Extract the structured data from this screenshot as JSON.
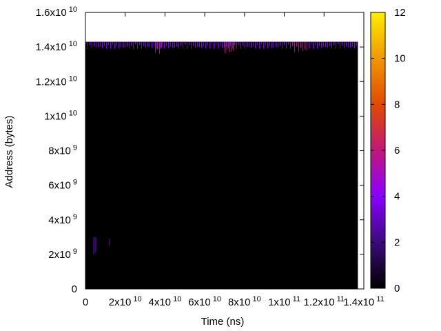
{
  "chart_data": {
    "type": "heatmap",
    "title": "",
    "xlabel": "Time (ns)",
    "ylabel": "Address (bytes)",
    "xlim": [
      0,
      140000000000
    ],
    "ylim": [
      0,
      16000000000
    ],
    "x_ticks": [
      {
        "base": "0",
        "exp": ""
      },
      {
        "base": "2x10",
        "exp": "10"
      },
      {
        "base": "4x10",
        "exp": "10"
      },
      {
        "base": "6x10",
        "exp": "10"
      },
      {
        "base": "8x10",
        "exp": "10"
      },
      {
        "base": "1x10",
        "exp": "11"
      },
      {
        "base": "1.2x10",
        "exp": "11"
      },
      {
        "base": "1.4x10",
        "exp": "11"
      }
    ],
    "y_ticks": [
      {
        "base": "0",
        "exp": ""
      },
      {
        "base": "2x10",
        "exp": "9"
      },
      {
        "base": "4x10",
        "exp": "9"
      },
      {
        "base": "6x10",
        "exp": "9"
      },
      {
        "base": "8x10",
        "exp": "9"
      },
      {
        "base": "1x10",
        "exp": "10"
      },
      {
        "base": "1.2x10",
        "exp": "10"
      },
      {
        "base": "1.4x10",
        "exp": "10"
      },
      {
        "base": "1.6x10",
        "exp": "10"
      }
    ],
    "colorbar": {
      "min": 0,
      "max": 12,
      "ticks": [
        "0",
        "2",
        "4",
        "6",
        "8",
        "10",
        "12"
      ],
      "palette": [
        "#000000",
        "#3b0b7a",
        "#8a00ff",
        "#c01878",
        "#e04a00",
        "#f09800",
        "#ffee00"
      ]
    },
    "data_extent": {
      "x_max": 137000000000,
      "y_max": 14300000000
    },
    "background_value": 0,
    "hot_bands": [
      {
        "x_range": [
          0,
          137000000000
        ],
        "y_range": [
          13900000000,
          14300000000
        ],
        "value": 3
      },
      {
        "x_range": [
          35000000000,
          39000000000
        ],
        "y_range": [
          13600000000,
          14300000000
        ],
        "value": 5
      },
      {
        "x_range": [
          70000000000,
          75000000000
        ],
        "y_range": [
          13600000000,
          14300000000
        ],
        "value": 5
      },
      {
        "x_range": [
          104000000000,
          112000000000
        ],
        "y_range": [
          13700000000,
          14300000000
        ],
        "value": 5
      },
      {
        "x_range": [
          4000000000,
          6000000000
        ],
        "y_range": [
          1800000000,
          3000000000
        ],
        "value": 3
      },
      {
        "x_range": [
          12000000000,
          13000000000
        ],
        "y_range": [
          2500000000,
          2900000000
        ],
        "value": 3
      }
    ]
  }
}
